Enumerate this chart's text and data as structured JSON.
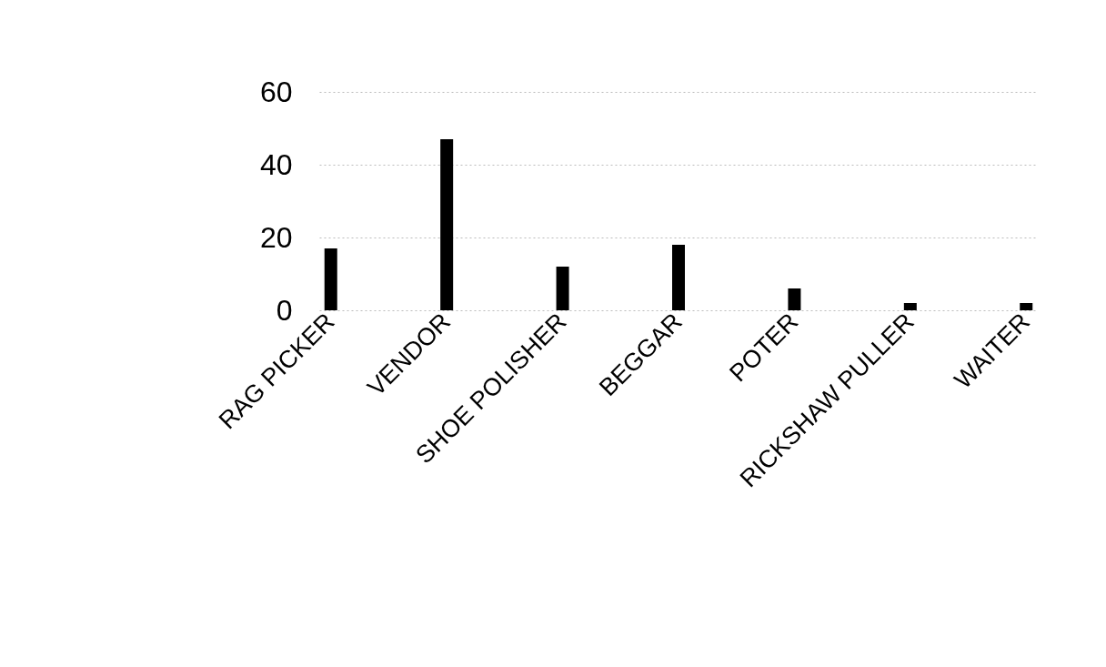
{
  "chart_data": {
    "type": "bar",
    "categories": [
      "RAG PICKER",
      "VENDOR",
      "SHOE POLISHER",
      "BEGGAR",
      "POTER",
      "RICKSHAW PULLER",
      "WAITER"
    ],
    "values": [
      17,
      47,
      12,
      18,
      6,
      2,
      2
    ],
    "color": "#000000",
    "ylim": [
      0,
      60
    ],
    "yticks": [
      0,
      20,
      40,
      60
    ],
    "grid": "y"
  }
}
